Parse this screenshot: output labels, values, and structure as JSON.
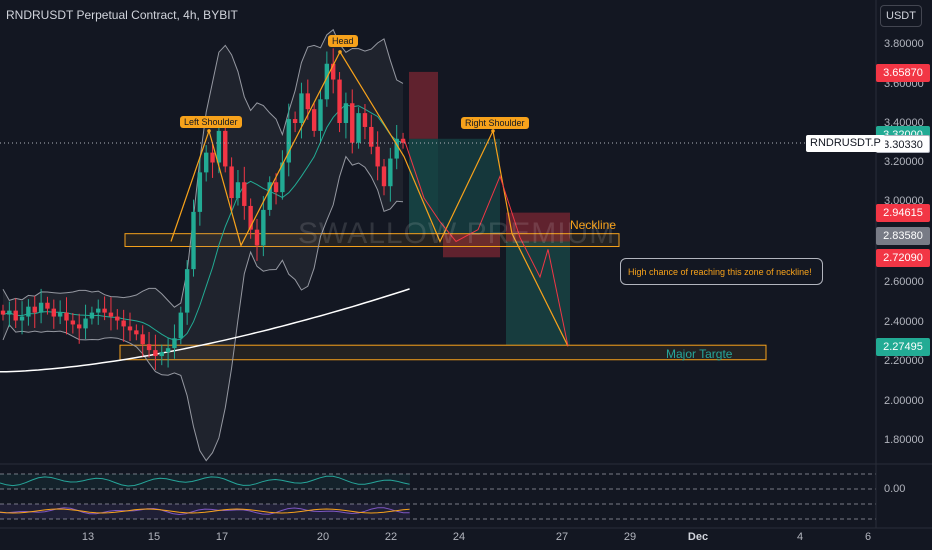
{
  "header": {
    "title": "RNDRUSDT Perpetual Contract, 4h, BYBIT",
    "currency": "USDT"
  },
  "price_axis": {
    "labels": [
      "3.80000",
      "3.60000",
      "3.40000",
      "3.20000",
      "3.00000",
      "2.60000",
      "2.40000",
      "2.20000",
      "2.00000",
      "1.80000"
    ],
    "indicator_label": "0.00"
  },
  "badges": {
    "tp_upper": "3.65870",
    "partial_hidden": "3.32000",
    "current": "3.30330",
    "neckline_upper": "2.94615",
    "neckline_mid": "2.83580",
    "neckline_lower": "2.72090",
    "target": "2.27495",
    "symbol": "RNDRUSDT.P"
  },
  "colors": {
    "red": "#f23645",
    "green": "#22ab94",
    "grey": "#787b86",
    "orange": "#f7a21b",
    "background": "#131722"
  },
  "time_axis": [
    "13",
    "15",
    "17",
    "20",
    "22",
    "24",
    "27",
    "29",
    "Dec",
    "4",
    "6"
  ],
  "annotations": {
    "head": "Head",
    "left_shoulder": "Left Shoulder",
    "right_shoulder": "Right Shoulder",
    "neckline": "Neckline",
    "target": "Major Targte",
    "note": "High chance of reaching this zone of neckline!",
    "watermark": "SWALLOW PREMIUM"
  },
  "chart_data": {
    "type": "candlestick",
    "symbol": "RNDRUSDT Perpetual Contract",
    "interval": "4h",
    "exchange": "BYBIT",
    "ylim": [
      1.7,
      3.9
    ],
    "current_price": 3.3033,
    "pattern": "head and shoulders",
    "key_levels": {
      "neckline_zone": [
        2.7746,
        2.8396
      ],
      "target_zone": [
        2.2013,
        2.2749
      ],
      "short_entry_zone": [
        2.7209,
        2.9462
      ],
      "stop_zone": [
        3.32,
        3.6587
      ]
    },
    "closes": [
      2.43,
      2.45,
      2.4,
      2.42,
      2.47,
      2.44,
      2.49,
      2.46,
      2.42,
      2.44,
      2.4,
      2.38,
      2.36,
      2.41,
      2.44,
      2.46,
      2.44,
      2.42,
      2.4,
      2.37,
      2.35,
      2.33,
      2.28,
      2.25,
      2.22,
      2.24,
      2.26,
      2.31,
      2.44,
      2.66,
      2.95,
      3.15,
      3.25,
      3.2,
      3.36,
      3.18,
      3.02,
      3.1,
      2.98,
      2.86,
      2.78,
      2.96,
      3.1,
      3.05,
      3.2,
      3.42,
      3.4,
      3.55,
      3.47,
      3.36,
      3.52,
      3.7,
      3.62,
      3.4,
      3.5,
      3.3,
      3.45,
      3.38,
      3.28,
      3.18,
      3.08,
      3.22,
      3.32,
      3.3
    ]
  }
}
